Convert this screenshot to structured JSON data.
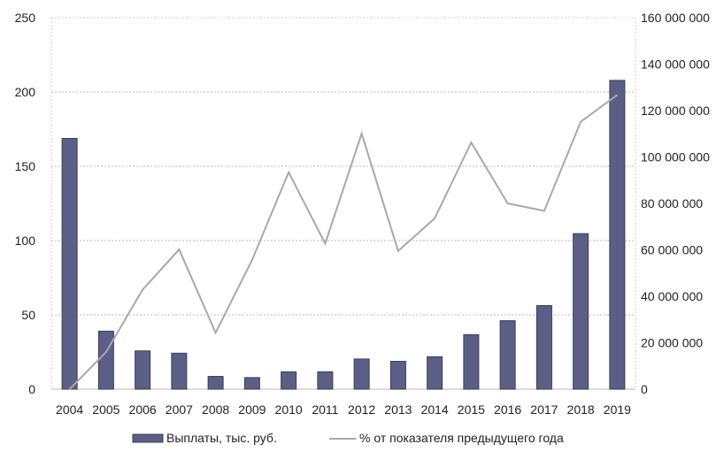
{
  "colors": {
    "bar_fill": "#5c5f85",
    "bar_stroke": "#3b3d5c",
    "line": "#a8a8a8",
    "grid": "#b9b9b9",
    "frame": "#cfcfcf"
  },
  "chart_data": {
    "type": "bar",
    "categories": [
      "2004",
      "2005",
      "2006",
      "2007",
      "2008",
      "2009",
      "2010",
      "2011",
      "2012",
      "2013",
      "2014",
      "2015",
      "2016",
      "2017",
      "2018",
      "2019"
    ],
    "series": [
      {
        "name": "Выплаты, тыс. руб.",
        "type": "bar",
        "axis": "right",
        "values": [
          108000000,
          25000000,
          16500000,
          15500000,
          5500000,
          5000000,
          7500000,
          7500000,
          13000000,
          12000000,
          14000000,
          23500000,
          29500000,
          36000000,
          67000000,
          133000000
        ]
      },
      {
        "name": "% от показателя предыдущего года",
        "type": "line",
        "axis": "left",
        "values": [
          0,
          25,
          67,
          94,
          38,
          87,
          146,
          98,
          172,
          93,
          115,
          166,
          125,
          120,
          180,
          198
        ]
      }
    ],
    "y_left": {
      "ticks": [
        "0",
        "50",
        "100",
        "150",
        "200",
        "250"
      ],
      "ylim": [
        0,
        250
      ]
    },
    "y_right": {
      "ticks": [
        "0",
        "20 000 000",
        "40 000 000",
        "60 000 000",
        "80 000 000",
        "100 000 000",
        "120 000 000",
        "140 000 000",
        "160 000 000"
      ],
      "ylim": [
        0,
        160000000
      ]
    },
    "grid": true,
    "legend_position": "bottom"
  }
}
